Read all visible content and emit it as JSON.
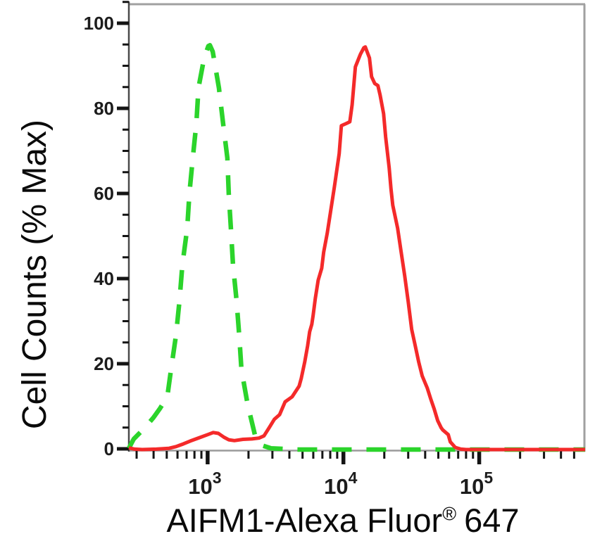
{
  "figure": {
    "background": "#ffffff",
    "border_color": "#a0a0a0",
    "y_axis_color": "#4a4a4a",
    "x_axis_color": "#9a9a9a",
    "tick_color": "#141414",
    "tick_label_color": "#1c1c1c"
  },
  "chart_data": {
    "type": "line",
    "subtype": "flow-cytometry-histogram",
    "title": "",
    "ylabel": "Cell Counts (% Max)",
    "xlabel": "AIFM1-Alexa Fluor® 647",
    "xlabel_main": "AIFM1-Alexa Fluor",
    "xlabel_sup": "®",
    "xlabel_suffix": "647",
    "x_scale": "log",
    "xlim": [
      263,
      602560
    ],
    "ylim": [
      0,
      100
    ],
    "grid": false,
    "legend": "none",
    "y_ticks_major": [
      0,
      20,
      40,
      60,
      80,
      100
    ],
    "y_tick_minor_step": 5,
    "x_ticks_major": [
      1000,
      10000,
      100000
    ],
    "x_tick_labels": [
      {
        "base": "10",
        "exp": "3"
      },
      {
        "base": "10",
        "exp": "4"
      },
      {
        "base": "10",
        "exp": "5"
      }
    ],
    "x_ticks_minor": [
      300,
      400,
      500,
      600,
      700,
      800,
      900,
      2000,
      3000,
      4000,
      5000,
      6000,
      7000,
      8000,
      9000,
      20000,
      30000,
      40000,
      50000,
      60000,
      70000,
      80000,
      90000,
      200000,
      300000,
      400000,
      500000
    ],
    "series": [
      {
        "name": "green-dashed-control",
        "style": "dashed",
        "color": "#2bd42b",
        "stroke_width": 6.5,
        "dash": [
          28,
          21
        ],
        "peak_x": 1040,
        "peak_y": 95,
        "points": [
          [
            263,
            0.3
          ],
          [
            286,
            2.5
          ],
          [
            342,
            5
          ],
          [
            399,
            7.5
          ],
          [
            445,
            9.6
          ],
          [
            478,
            11.2
          ],
          [
            507,
            12.9
          ],
          [
            538,
            18.8
          ],
          [
            585,
            26.9
          ],
          [
            621,
            35.1
          ],
          [
            652,
            43.4
          ],
          [
            708,
            52
          ],
          [
            734,
            60.2
          ],
          [
            778,
            68.5
          ],
          [
            826,
            76.7
          ],
          [
            857,
            85
          ],
          [
            942,
            92
          ],
          [
            1012,
            94.8
          ],
          [
            1040,
            95
          ],
          [
            1090,
            93.5
          ],
          [
            1211,
            85
          ],
          [
            1300,
            76.7
          ],
          [
            1397,
            68.5
          ],
          [
            1432,
            60
          ],
          [
            1483,
            52
          ],
          [
            1538,
            43.4
          ],
          [
            1633,
            35.1
          ],
          [
            1710,
            26.7
          ],
          [
            1774,
            18.8
          ],
          [
            1972,
            10.6
          ],
          [
            2249,
            3
          ],
          [
            2506,
            1
          ],
          [
            2925,
            0.3
          ],
          [
            4450,
            0
          ],
          [
            602560,
            0
          ]
        ]
      },
      {
        "name": "red-solid-stained",
        "style": "solid",
        "color": "#f42a2a",
        "stroke_width": 5,
        "dash": null,
        "peak_x": 14500,
        "peak_y": 94.6,
        "points": [
          [
            263,
            0.4
          ],
          [
            290,
            0.1
          ],
          [
            330,
            0
          ],
          [
            420,
            0.1
          ],
          [
            520,
            0.3
          ],
          [
            585,
            0.7
          ],
          [
            660,
            1.3
          ],
          [
            745,
            2
          ],
          [
            870,
            2.8
          ],
          [
            1000,
            3.5
          ],
          [
            1100,
            4
          ],
          [
            1200,
            3.8
          ],
          [
            1320,
            2.9
          ],
          [
            1430,
            2.3
          ],
          [
            1575,
            2.1
          ],
          [
            1820,
            2.4
          ],
          [
            2120,
            2.5
          ],
          [
            2390,
            2.7
          ],
          [
            2600,
            3.2
          ],
          [
            2860,
            5.3
          ],
          [
            3100,
            7.1
          ],
          [
            3390,
            8.2
          ],
          [
            3720,
            11.2
          ],
          [
            4190,
            12.4
          ],
          [
            4720,
            14.9
          ],
          [
            4890,
            16.7
          ],
          [
            5190,
            20.6
          ],
          [
            5450,
            24.4
          ],
          [
            5640,
            27.7
          ],
          [
            5850,
            29.4
          ],
          [
            5980,
            31.5
          ],
          [
            6210,
            35.5
          ],
          [
            6520,
            39.8
          ],
          [
            6920,
            42.6
          ],
          [
            7160,
            46.4
          ],
          [
            7600,
            50.8
          ],
          [
            8570,
            61.6
          ],
          [
            9310,
            69.5
          ],
          [
            9660,
            76.1
          ],
          [
            10470,
            76.6
          ],
          [
            11140,
            77
          ],
          [
            11600,
            81
          ],
          [
            12250,
            89.9
          ],
          [
            13340,
            92.9
          ],
          [
            14130,
            94.4
          ],
          [
            14500,
            94.6
          ],
          [
            15560,
            92
          ],
          [
            16110,
            87.6
          ],
          [
            17000,
            86
          ],
          [
            17950,
            85.5
          ],
          [
            18620,
            83.3
          ],
          [
            19770,
            78.9
          ],
          [
            20460,
            73.4
          ],
          [
            21730,
            66.2
          ],
          [
            22400,
            61.2
          ],
          [
            23100,
            57.4
          ],
          [
            25060,
            52
          ],
          [
            26610,
            46.4
          ],
          [
            28250,
            40.9
          ],
          [
            30000,
            34.8
          ],
          [
            31850,
            28.2
          ],
          [
            33800,
            24.4
          ],
          [
            35810,
            20.6
          ],
          [
            38020,
            17.3
          ],
          [
            41400,
            14.5
          ],
          [
            43850,
            12
          ],
          [
            46560,
            9.6
          ],
          [
            49430,
            6.8
          ],
          [
            52480,
            5.1
          ],
          [
            53990,
            4.6
          ],
          [
            59160,
            3.5
          ],
          [
            61240,
            1.8
          ],
          [
            66680,
            0.5
          ],
          [
            73280,
            0.1
          ],
          [
            80000,
            0
          ],
          [
            602560,
            0
          ]
        ]
      }
    ]
  }
}
